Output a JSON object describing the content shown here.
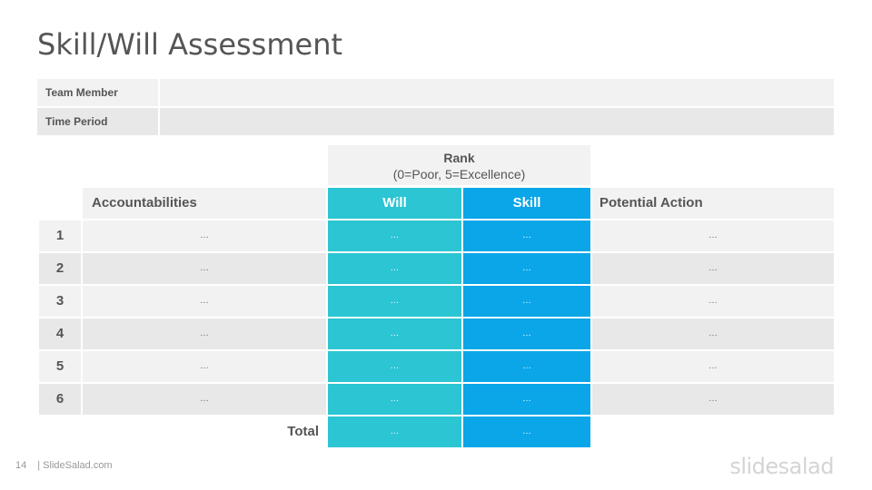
{
  "title": "Skill/Will Assessment",
  "info": {
    "team_member_label": "Team Member",
    "time_period_label": "Time Period"
  },
  "rank": {
    "title": "Rank",
    "subtitle": "(0=Poor, 5=Excellence)"
  },
  "headers": {
    "accountabilities": "Accountabilities",
    "will": "Will",
    "skill": "Skill",
    "potential_action": "Potential Action"
  },
  "rows": [
    {
      "num": "1",
      "acc": "…",
      "will": "…",
      "skill": "…",
      "action": "…"
    },
    {
      "num": "2",
      "acc": "…",
      "will": "…",
      "skill": "…",
      "action": "…"
    },
    {
      "num": "3",
      "acc": "…",
      "will": "…",
      "skill": "…",
      "action": "…"
    },
    {
      "num": "4",
      "acc": "…",
      "will": "…",
      "skill": "…",
      "action": "…"
    },
    {
      "num": "5",
      "acc": "…",
      "will": "…",
      "skill": "…",
      "action": "…"
    },
    {
      "num": "6",
      "acc": "…",
      "will": "…",
      "skill": "…",
      "action": "…"
    }
  ],
  "total": {
    "label": "Total",
    "will": "…",
    "skill": "…"
  },
  "footer": {
    "page": "14",
    "site": "| SlideSalad.com"
  },
  "logo": "slidesalad",
  "colors": {
    "will": "#2bc5d3",
    "skill": "#0aa6e8"
  }
}
